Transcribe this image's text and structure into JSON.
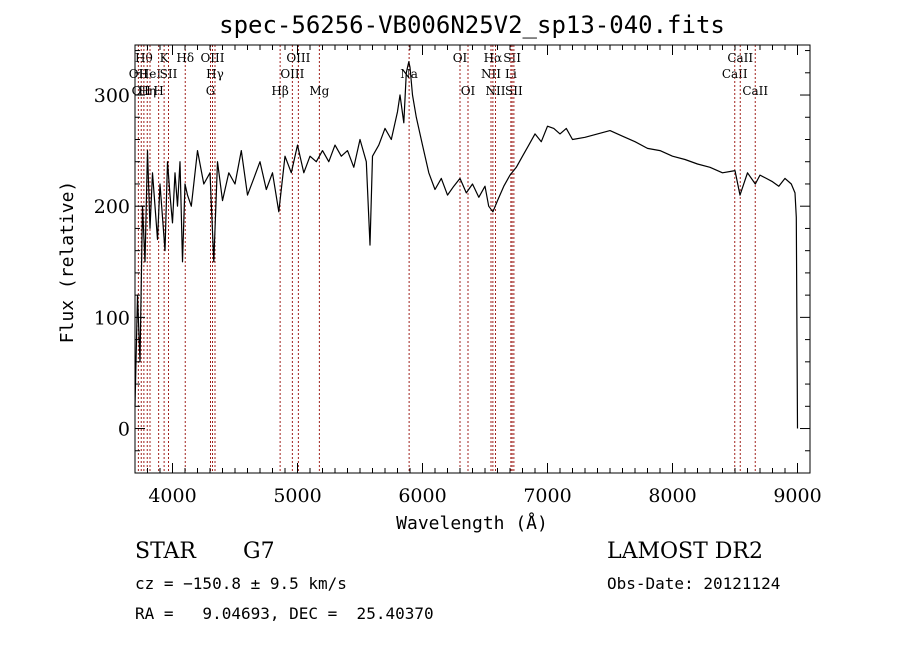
{
  "chart_data": {
    "type": "line",
    "title": "spec-56256-VB006N25V2_sp13-040.fits",
    "xlabel": "Wavelength (Å)",
    "ylabel": "Flux (relative)",
    "xlim": [
      3700,
      9100
    ],
    "ylim": [
      -40,
      345
    ],
    "xticks": [
      4000,
      5000,
      6000,
      7000,
      8000,
      9000
    ],
    "yticks": [
      0,
      100,
      200,
      300
    ],
    "grid": false,
    "series": [
      {
        "x": [
          3700,
          3720,
          3740,
          3760,
          3780,
          3800,
          3820,
          3840,
          3860,
          3880,
          3900,
          3920,
          3940,
          3960,
          3980,
          4000,
          4020,
          4040,
          4060,
          4080,
          4100,
          4120,
          4150,
          4200,
          4250,
          4300,
          4330,
          4360,
          4400,
          4450,
          4500,
          4550,
          4600,
          4650,
          4700,
          4750,
          4800,
          4850,
          4900,
          4950,
          5000,
          5050,
          5100,
          5150,
          5200,
          5250,
          5300,
          5350,
          5400,
          5450,
          5500,
          5550,
          5580,
          5600,
          5650,
          5700,
          5750,
          5800,
          5820,
          5850,
          5870,
          5890,
          5900,
          5920,
          5950,
          6000,
          6050,
          6100,
          6150,
          6200,
          6250,
          6300,
          6350,
          6400,
          6450,
          6500,
          6530,
          6563,
          6600,
          6650,
          6700,
          6750,
          6800,
          6850,
          6900,
          6950,
          7000,
          7050,
          7100,
          7150,
          7200,
          7300,
          7400,
          7500,
          7600,
          7700,
          7800,
          7900,
          8000,
          8100,
          8200,
          8300,
          8400,
          8500,
          8540,
          8600,
          8662,
          8700,
          8750,
          8800,
          8850,
          8900,
          8950,
          8980,
          8990,
          9000
        ],
        "values": [
          20,
          120,
          60,
          200,
          150,
          250,
          180,
          230,
          200,
          170,
          220,
          190,
          160,
          240,
          210,
          185,
          230,
          200,
          240,
          150,
          220,
          210,
          200,
          250,
          220,
          230,
          150,
          240,
          205,
          230,
          220,
          250,
          210,
          225,
          240,
          215,
          230,
          195,
          245,
          230,
          255,
          230,
          245,
          240,
          250,
          240,
          255,
          245,
          250,
          235,
          260,
          240,
          165,
          245,
          255,
          270,
          260,
          285,
          300,
          275,
          320,
          330,
          325,
          300,
          280,
          255,
          230,
          215,
          225,
          210,
          218,
          225,
          212,
          220,
          208,
          218,
          200,
          195,
          205,
          218,
          228,
          235,
          245,
          255,
          265,
          258,
          272,
          270,
          265,
          270,
          260,
          262,
          265,
          268,
          263,
          258,
          252,
          250,
          245,
          242,
          238,
          235,
          230,
          232,
          210,
          230,
          220,
          228,
          225,
          222,
          218,
          225,
          220,
          212,
          190,
          0
        ]
      }
    ],
    "spectral_lines": [
      {
        "x": 3727,
        "label": "OII",
        "row": 2
      },
      {
        "x": 3750,
        "label": "OII",
        "row": 3
      },
      {
        "x": 3771,
        "label": "Hθ",
        "row": 1
      },
      {
        "x": 3798,
        "label": "Hη",
        "row": 3
      },
      {
        "x": 3820,
        "label": "HeI",
        "row": 2
      },
      {
        "x": 3889,
        "label": "H",
        "row": 3
      },
      {
        "x": 3933,
        "label": "K",
        "row": 1
      },
      {
        "x": 3968,
        "label": "SII",
        "row": 2
      },
      {
        "x": 4102,
        "label": "Hδ",
        "row": 1
      },
      {
        "x": 4304,
        "label": "G",
        "row": 3
      },
      {
        "x": 4320,
        "label": "OIII",
        "row": 1
      },
      {
        "x": 4340,
        "label": "Hγ",
        "row": 2
      },
      {
        "x": 4861,
        "label": "Hβ",
        "row": 3
      },
      {
        "x": 4959,
        "label": "OIII",
        "row": 2
      },
      {
        "x": 5007,
        "label": "OIII",
        "row": 1
      },
      {
        "x": 5175,
        "label": "Mg",
        "row": 3
      },
      {
        "x": 5893,
        "label": "Na",
        "row": 2
      },
      {
        "x": 6300,
        "label": "OI",
        "row": 1
      },
      {
        "x": 6364,
        "label": "OI",
        "row": 3
      },
      {
        "x": 6548,
        "label": "NII",
        "row": 2
      },
      {
        "x": 6563,
        "label": "Hα",
        "row": 1
      },
      {
        "x": 6584,
        "label": "NII",
        "row": 3
      },
      {
        "x": 6707,
        "label": "Li",
        "row": 2
      },
      {
        "x": 6717,
        "label": "SII",
        "row": 1
      },
      {
        "x": 6731,
        "label": "SII",
        "row": 3
      },
      {
        "x": 8498,
        "label": "CaII",
        "row": 2
      },
      {
        "x": 8542,
        "label": "CaII",
        "row": 1
      },
      {
        "x": 8662,
        "label": "CaII",
        "row": 3
      }
    ],
    "line_color": "#a0201c"
  },
  "info": {
    "object_type": "STAR",
    "subclass": "G7",
    "survey": "LAMOST DR2",
    "cz": "cz = −150.8 ± 9.5 km/s",
    "obs_date": "Obs-Date: 20121124",
    "coords": "RA =   9.04693, DEC =  25.40370"
  }
}
